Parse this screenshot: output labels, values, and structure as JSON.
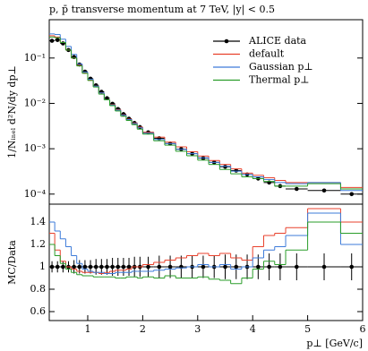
{
  "chart_data": [
    {
      "type": "histogram",
      "title": "p, p̄ transverse momentum at 7 TeV, |y| < 0.5",
      "ylabel": "1/Nᵢₙₑₗ d²N/dy dp⊥",
      "yscale": "log",
      "xlim": [
        0.3,
        6
      ],
      "ylim": [
        6e-05,
        0.7
      ],
      "yticks": [
        {
          "value": 0.1,
          "label": "10⁻¹"
        },
        {
          "value": 0.01,
          "label": "10⁻²"
        },
        {
          "value": 0.001,
          "label": "10⁻³"
        },
        {
          "value": 0.0001,
          "label": "10⁻⁴"
        }
      ],
      "legend": "upper right",
      "bins": [
        0.3,
        0.4,
        0.5,
        0.6,
        0.7,
        0.8,
        0.9,
        1.0,
        1.1,
        1.2,
        1.3,
        1.4,
        1.5,
        1.6,
        1.7,
        1.8,
        1.9,
        2.0,
        2.2,
        2.4,
        2.6,
        2.8,
        3.0,
        3.2,
        3.4,
        3.6,
        3.8,
        4.0,
        4.2,
        4.4,
        4.6,
        5.0,
        5.6,
        6.0
      ],
      "series": [
        {
          "name": "ALICE data",
          "color": "#000000",
          "marker": true,
          "values": [
            0.24,
            0.25,
            0.21,
            0.15,
            0.105,
            0.072,
            0.05,
            0.035,
            0.025,
            0.018,
            0.013,
            0.0098,
            0.0075,
            0.0058,
            0.0046,
            0.0037,
            0.003,
            0.0023,
            0.0017,
            0.0013,
            0.00098,
            0.00078,
            0.00062,
            0.0005,
            0.0004,
            0.00033,
            0.00027,
            0.00022,
            0.00018,
            0.00015,
            0.00013,
            0.00012,
            0.0001
          ]
        },
        {
          "name": "default",
          "color": "#e8412c",
          "values": [
            0.31,
            0.29,
            0.22,
            0.15,
            0.1,
            0.069,
            0.048,
            0.033,
            0.024,
            0.017,
            0.012,
            0.0094,
            0.0073,
            0.0056,
            0.0045,
            0.0037,
            0.003,
            0.0023,
            0.0018,
            0.0014,
            0.0011,
            0.00086,
            0.00069,
            0.00055,
            0.00045,
            0.00036,
            0.00029,
            0.00026,
            0.00023,
            0.0002,
            0.00018,
            0.00018,
            0.00014
          ]
        },
        {
          "name": "Gaussian p⊥",
          "color": "#3d7bd9",
          "values": [
            0.34,
            0.33,
            0.26,
            0.18,
            0.12,
            0.074,
            0.049,
            0.034,
            0.024,
            0.017,
            0.012,
            0.0092,
            0.0071,
            0.0055,
            0.0044,
            0.0036,
            0.0029,
            0.0022,
            0.0016,
            0.0013,
            0.00097,
            0.00078,
            0.00063,
            0.0005,
            0.00041,
            0.00032,
            0.00027,
            0.00024,
            0.00021,
            0.00018,
            0.00017,
            0.00018,
            0.00012
          ]
        },
        {
          "name": "Thermal p⊥",
          "color": "#2a9d2a",
          "values": [
            0.29,
            0.28,
            0.22,
            0.15,
            0.1,
            0.067,
            0.046,
            0.032,
            0.023,
            0.016,
            0.012,
            0.0089,
            0.0068,
            0.0052,
            0.0042,
            0.0034,
            0.0027,
            0.0021,
            0.0015,
            0.0012,
            0.00088,
            0.0007,
            0.00056,
            0.00045,
            0.00035,
            0.00028,
            0.00024,
            0.00022,
            0.00019,
            0.00015,
            0.00015,
            0.00017,
            0.00013
          ]
        }
      ]
    },
    {
      "type": "histogram",
      "ylabel": "MC/Data",
      "xlabel": "p⊥ [GeV/c]",
      "xlim": [
        0.3,
        6
      ],
      "xticks": [
        1,
        2,
        3,
        4,
        5,
        6
      ],
      "ylim": [
        0.52,
        1.56
      ],
      "yticks": [
        0.6,
        0.8,
        1,
        1.2,
        1.4
      ],
      "bins": [
        0.3,
        0.4,
        0.5,
        0.6,
        0.7,
        0.8,
        0.9,
        1.0,
        1.1,
        1.2,
        1.3,
        1.4,
        1.5,
        1.6,
        1.7,
        1.8,
        1.9,
        2.0,
        2.2,
        2.4,
        2.6,
        2.8,
        3.0,
        3.2,
        3.4,
        3.6,
        3.8,
        4.0,
        4.2,
        4.4,
        4.6,
        5.0,
        5.6,
        6.0
      ],
      "series": [
        {
          "color": "#000000",
          "marker": true,
          "values": [
            1,
            1,
            1,
            1,
            1,
            1,
            1,
            1,
            1,
            1,
            1,
            1,
            1,
            1,
            1,
            1,
            1,
            1,
            1,
            1,
            1,
            1,
            1,
            1,
            1,
            1,
            1,
            1,
            1,
            1,
            1,
            1,
            1
          ],
          "errors": [
            0.05,
            0.05,
            0.05,
            0.05,
            0.06,
            0.06,
            0.06,
            0.06,
            0.07,
            0.07,
            0.07,
            0.08,
            0.08,
            0.08,
            0.08,
            0.09,
            0.09,
            0.09,
            0.1,
            0.1,
            0.1,
            0.1,
            0.1,
            0.1,
            0.11,
            0.11,
            0.11,
            0.11,
            0.12,
            0.12,
            0.12,
            0.12,
            0.12
          ]
        },
        {
          "color": "#e8412c",
          "values": [
            1.3,
            1.15,
            1.05,
            1.0,
            0.98,
            0.96,
            0.95,
            0.95,
            0.95,
            0.94,
            0.95,
            0.96,
            0.97,
            0.97,
            0.98,
            1.0,
            1.0,
            1.02,
            1.04,
            1.06,
            1.08,
            1.1,
            1.12,
            1.1,
            1.12,
            1.08,
            1.06,
            1.18,
            1.28,
            1.3,
            1.35,
            1.52,
            1.4
          ]
        },
        {
          "color": "#3d7bd9",
          "values": [
            1.4,
            1.32,
            1.25,
            1.18,
            1.1,
            1.03,
            0.98,
            0.96,
            0.95,
            0.95,
            0.94,
            0.94,
            0.95,
            0.95,
            0.95,
            0.96,
            0.96,
            0.96,
            0.97,
            0.98,
            0.99,
            1.0,
            1.02,
            1.0,
            1.02,
            0.98,
            1.0,
            1.08,
            1.15,
            1.18,
            1.28,
            1.48,
            1.2
          ]
        },
        {
          "color": "#2a9d2a",
          "values": [
            1.2,
            1.1,
            1.03,
            0.98,
            0.95,
            0.93,
            0.92,
            0.92,
            0.91,
            0.91,
            0.91,
            0.91,
            0.9,
            0.9,
            0.91,
            0.91,
            0.9,
            0.91,
            0.9,
            0.92,
            0.9,
            0.9,
            0.91,
            0.89,
            0.88,
            0.85,
            0.9,
            0.98,
            1.05,
            1.02,
            1.15,
            1.4,
            1.3
          ]
        }
      ]
    }
  ]
}
